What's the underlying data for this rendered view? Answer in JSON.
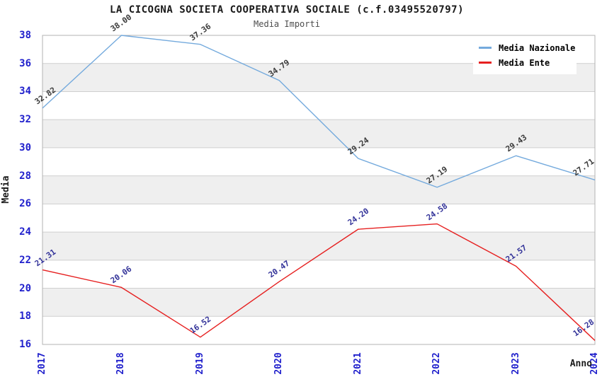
{
  "chart_data": {
    "type": "line",
    "title": "LA CICOGNA SOCIETA COOPERATIVA SOCIALE (c.f.03495520797)",
    "subtitle": "Media Importi",
    "xlabel": "Anno",
    "ylabel": "Media",
    "categories": [
      "2017",
      "2018",
      "2019",
      "2020",
      "2021",
      "2022",
      "2023",
      "2024"
    ],
    "series": [
      {
        "name": "Media Nazionale",
        "color": "#74aadd",
        "label_color": "#3a3a3a",
        "values": [
          32.82,
          38.0,
          37.36,
          34.79,
          29.24,
          27.19,
          29.43,
          27.71
        ]
      },
      {
        "name": "Media Ente",
        "color": "#e62020",
        "label_color": "#333399",
        "values": [
          21.31,
          20.06,
          16.52,
          20.47,
          24.2,
          24.58,
          21.57,
          16.28
        ]
      }
    ],
    "ylim": [
      16,
      38
    ],
    "ytick_step": 2,
    "grid": true,
    "band_color": "#efefef",
    "gridline_color": "#cfcfcf",
    "border_color": "#b3b3b3",
    "tick_label_color": "#2020cc",
    "legend_position": "top-right"
  }
}
